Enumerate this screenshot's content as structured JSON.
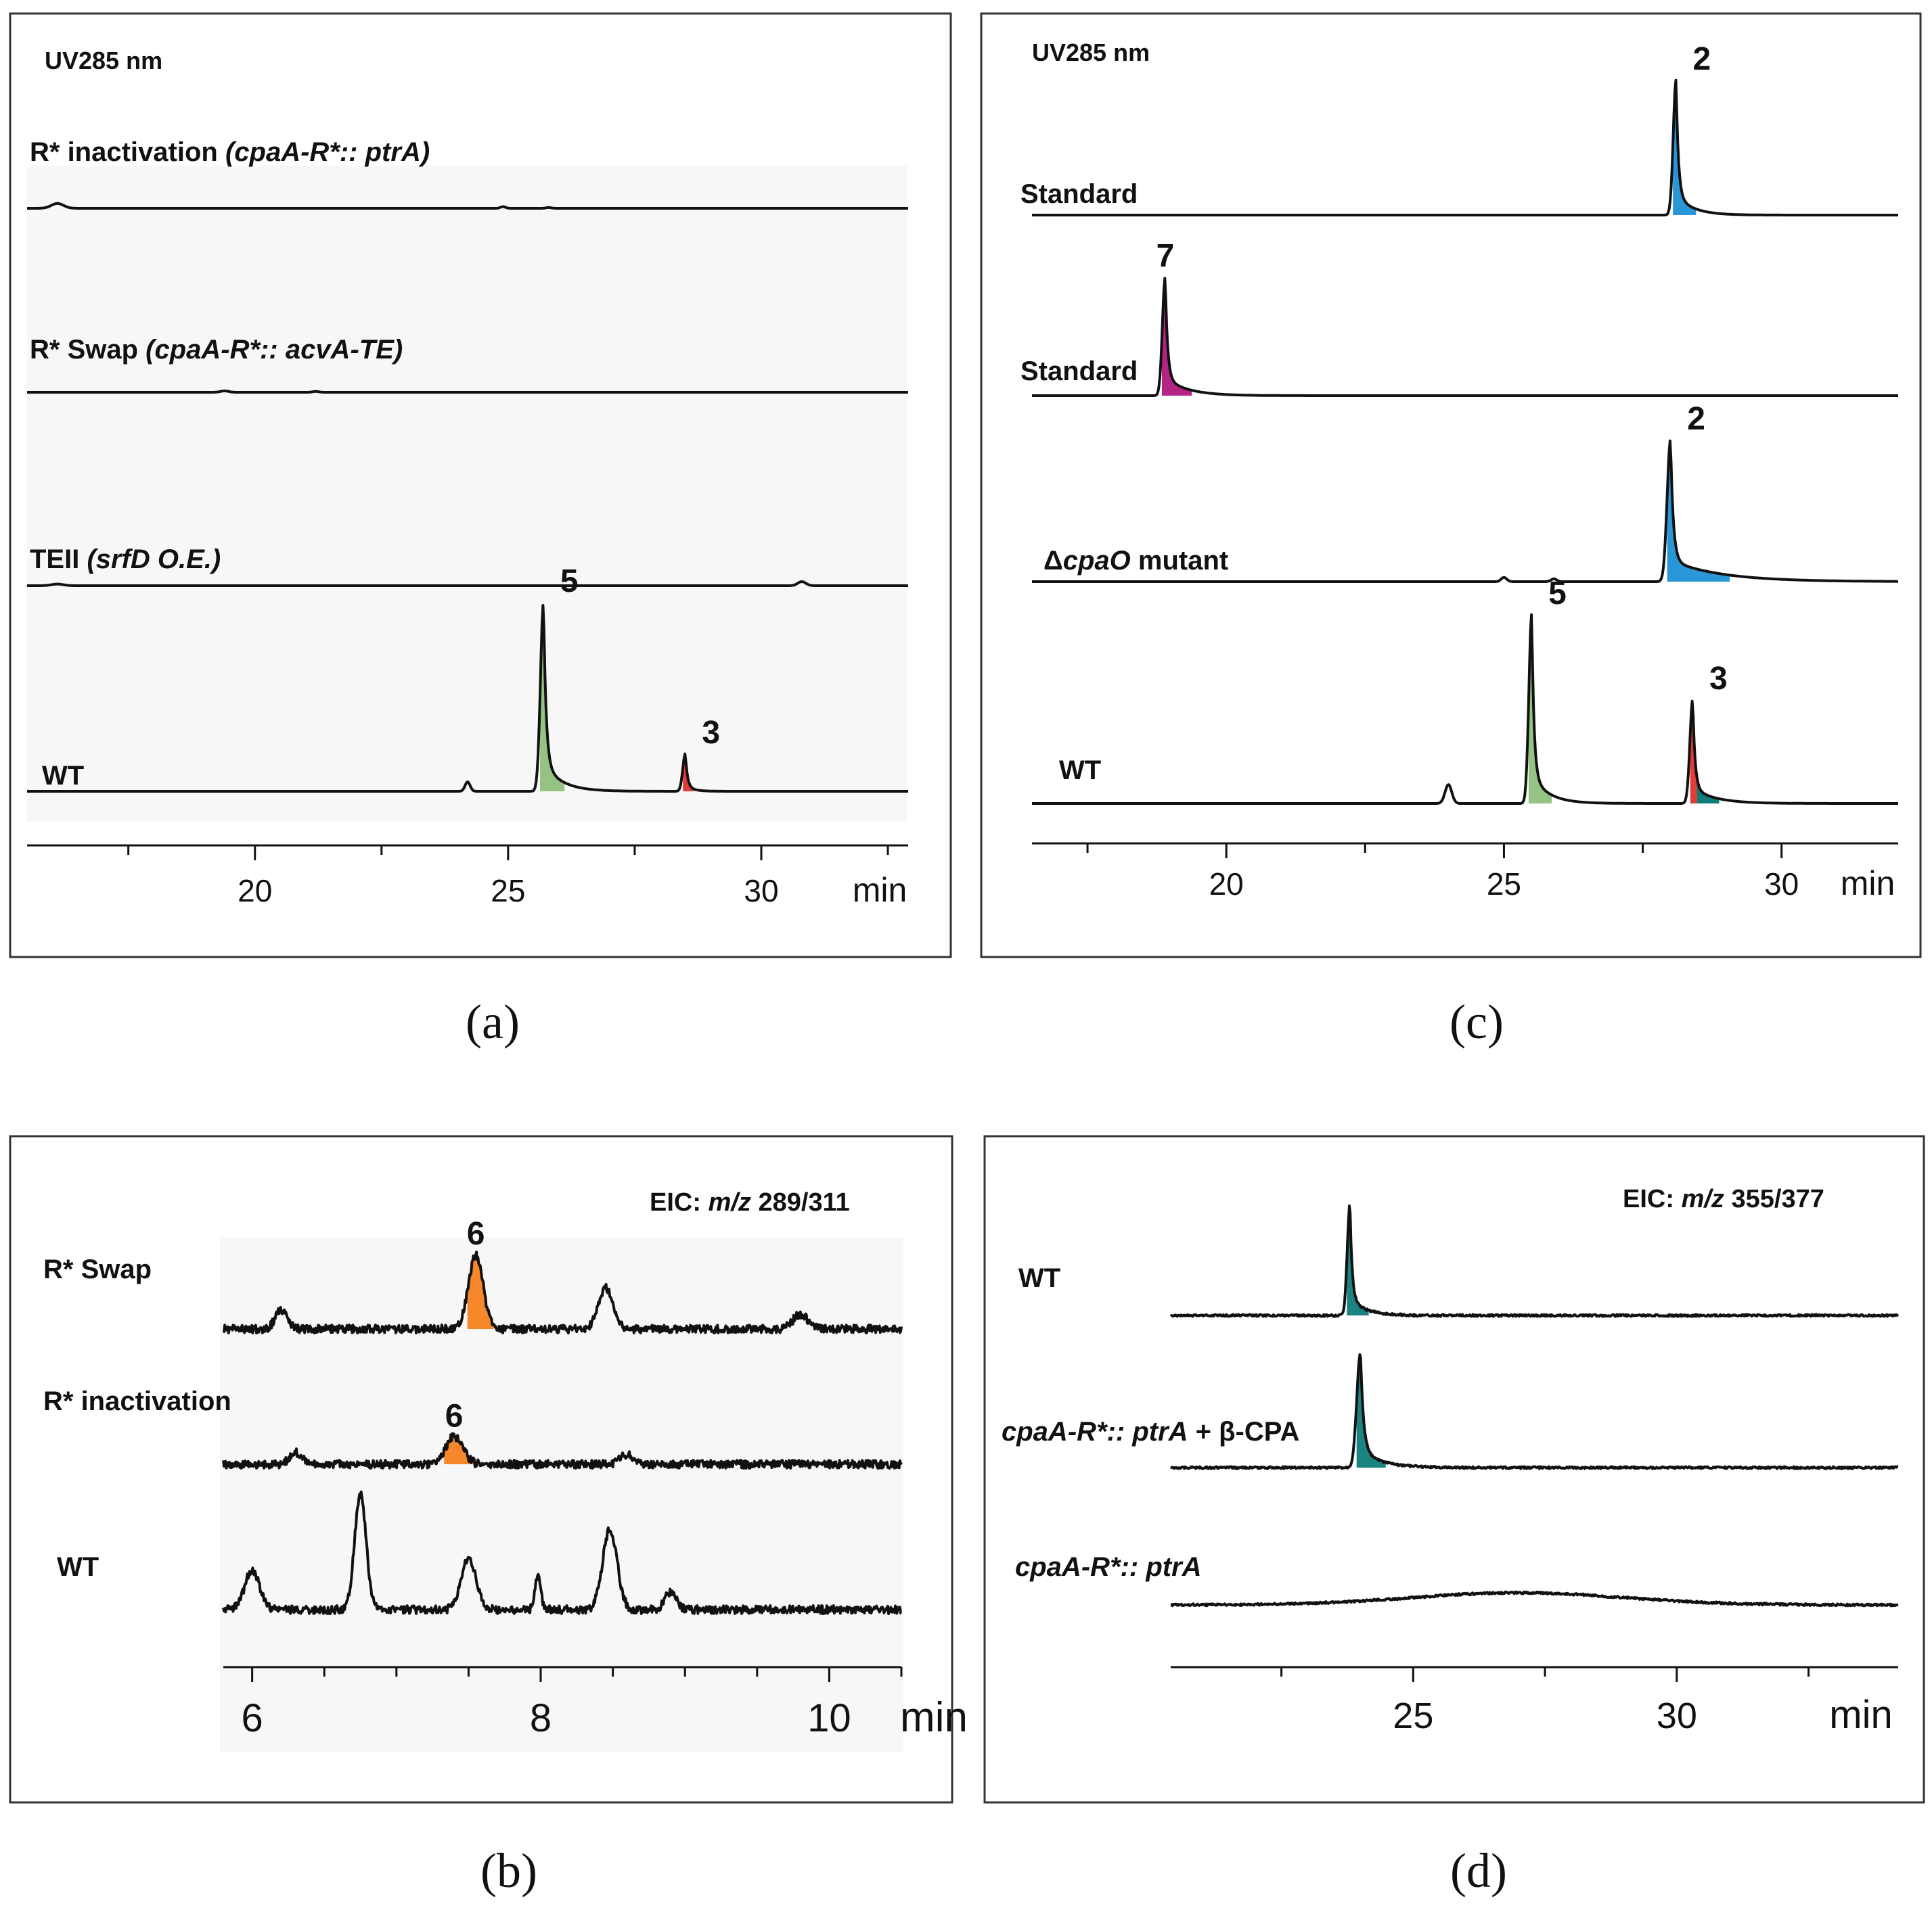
{
  "chart_data": [
    {
      "panel": "a",
      "type": "line",
      "caption": "(a)",
      "title": "UV285 nm",
      "xlabel": "min",
      "xlim": [
        15.5,
        32.9
      ],
      "ticks": [
        20,
        25,
        30
      ],
      "tick_labels": [
        "20",
        "25",
        "30"
      ],
      "unit_label": "min",
      "traces": [
        {
          "label": "R* inactivation",
          "label_italic": "(cpaA-R*:: ptrA)",
          "peaks": [
            {
              "x": 16.1,
              "h": 0.18,
              "w": 0.12
            },
            {
              "x": 24.9,
              "h": 0.06,
              "w": 0.05
            },
            {
              "x": 25.8,
              "h": 0.03,
              "w": 0.05
            }
          ]
        },
        {
          "label": "R* Swap",
          "label_italic": "(cpaA-R*:: acvA-TE)",
          "peaks": [
            {
              "x": 19.4,
              "h": 0.05,
              "w": 0.08
            },
            {
              "x": 21.2,
              "h": 0.03,
              "w": 0.06
            }
          ]
        },
        {
          "label": "TEII",
          "label_italic": "(srfD O.E.)",
          "peaks": [
            {
              "x": 16.1,
              "h": 0.06,
              "w": 0.12
            },
            {
              "x": 30.8,
              "h": 0.15,
              "w": 0.08
            }
          ]
        },
        {
          "label": "WT",
          "label_italic": "",
          "peaks": [
            {
              "x": 24.2,
              "h": 0.05,
              "w": 0.05
            },
            {
              "x": 25.7,
              "h": 1.0,
              "w": 0.06,
              "tail": 0.35,
              "color": "#8ec07c",
              "id": "5"
            },
            {
              "x": 28.5,
              "h": 0.2,
              "w": 0.05,
              "tail": 0.15,
              "color": "#e0312d",
              "id": "3"
            }
          ]
        }
      ]
    },
    {
      "panel": "c",
      "type": "line",
      "caption": "(c)",
      "title": "UV285 nm",
      "xlabel": "min",
      "xlim": [
        16.5,
        32.1
      ],
      "ticks": [
        20,
        25,
        30
      ],
      "tick_labels": [
        "20",
        "25",
        "30"
      ],
      "unit_label": "min",
      "traces": [
        {
          "label": "Standard",
          "label_italic": "",
          "peaks": [
            {
              "x": 28.1,
              "h": 1.0,
              "w": 0.05,
              "tail": 0.3,
              "color": "#1e90d6",
              "id": "2"
            }
          ]
        },
        {
          "label": "Standard",
          "label_italic": "",
          "peaks": [
            {
              "x": 18.9,
              "h": 0.95,
              "w": 0.05,
              "tail": 0.4,
              "color": "#b0177e",
              "id": "7"
            }
          ]
        },
        {
          "label": "mutant",
          "label_italic": "cpaO",
          "label_prefix": "Δ",
          "peaks": [
            {
              "x": 25.0,
              "h": 0.03,
              "w": 0.05
            },
            {
              "x": 25.9,
              "h": 0.02,
              "w": 0.05
            },
            {
              "x": 28.0,
              "h": 1.0,
              "w": 0.06,
              "tail": 0.9,
              "color": "#1e90d6",
              "id": "2"
            }
          ]
        },
        {
          "label": "WT",
          "label_italic": "",
          "peaks": [
            {
              "x": 24.0,
              "h": 0.1,
              "w": 0.06
            },
            {
              "x": 25.5,
              "h": 1.0,
              "w": 0.05,
              "tail": 0.3,
              "color": "#8ec07c",
              "id": "5"
            },
            {
              "x": 28.4,
              "h": 0.55,
              "w": 0.05,
              "tail": 0.4,
              "color": "#e0312d",
              "color2": "#0f7d7a",
              "id": "3"
            }
          ]
        }
      ]
    },
    {
      "panel": "b",
      "type": "line",
      "caption": "(b)",
      "title": "EIC: m/z 289/311",
      "title_prefix": "EIC: ",
      "title_italic": "m/z",
      "title_suffix": " 289/311",
      "xlabel": "min",
      "xlim": [
        5.8,
        10.5
      ],
      "ticks": [
        6,
        8,
        10
      ],
      "tick_labels": [
        "6",
        "8",
        "10"
      ],
      "unit_label": "min",
      "traces": [
        {
          "label": "R* Swap",
          "label_italic": "",
          "peaks": [
            {
              "x": 7.55,
              "h": 1.0,
              "w": 0.05,
              "color": "#f58220",
              "id": "6"
            },
            {
              "x": 8.45,
              "h": 0.55,
              "w": 0.05
            },
            {
              "x": 6.2,
              "h": 0.25,
              "w": 0.04
            },
            {
              "x": 9.8,
              "h": 0.2,
              "w": 0.05
            }
          ]
        },
        {
          "label": "R* inactivation",
          "label_italic": "",
          "peaks": [
            {
              "x": 7.4,
              "h": 0.45,
              "w": 0.06,
              "color": "#f58220",
              "id": "6"
            },
            {
              "x": 6.3,
              "h": 0.2,
              "w": 0.04
            },
            {
              "x": 8.6,
              "h": 0.15,
              "w": 0.05
            }
          ]
        },
        {
          "label": "WT",
          "label_italic": "",
          "peaks": [
            {
              "x": 6.0,
              "h": 0.35,
              "w": 0.05
            },
            {
              "x": 6.75,
              "h": 1.0,
              "w": 0.04
            },
            {
              "x": 7.5,
              "h": 0.45,
              "w": 0.05
            },
            {
              "x": 7.98,
              "h": 0.3,
              "w": 0.02
            },
            {
              "x": 8.48,
              "h": 0.7,
              "w": 0.05
            },
            {
              "x": 8.9,
              "h": 0.15,
              "w": 0.04
            }
          ]
        }
      ]
    },
    {
      "panel": "d",
      "type": "line",
      "caption": "(d)",
      "title": "EIC: m/z 355/377",
      "title_prefix": "EIC: ",
      "title_italic": "m/z",
      "title_suffix": " 355/377",
      "xlabel": "min",
      "xlim": [
        20.4,
        34.2
      ],
      "ticks": [
        25,
        30
      ],
      "tick_labels": [
        "25",
        "30"
      ],
      "unit_label": "min",
      "traces": [
        {
          "label": "WT",
          "label_italic": "",
          "peaks": [
            {
              "x": 23.8,
              "h": 1.0,
              "w": 0.05,
              "tail": 0.3,
              "color": "#0f7d7a"
            }
          ]
        },
        {
          "label": "+ β-CPA",
          "label_italic": "cpaA-R*:: ptrA",
          "peaks": [
            {
              "x": 24.0,
              "h": 1.0,
              "w": 0.07,
              "tail": 0.4,
              "color": "#0f7d7a"
            }
          ]
        },
        {
          "label": "",
          "label_italic": "cpaA-R*:: ptrA",
          "peaks": []
        }
      ]
    }
  ]
}
